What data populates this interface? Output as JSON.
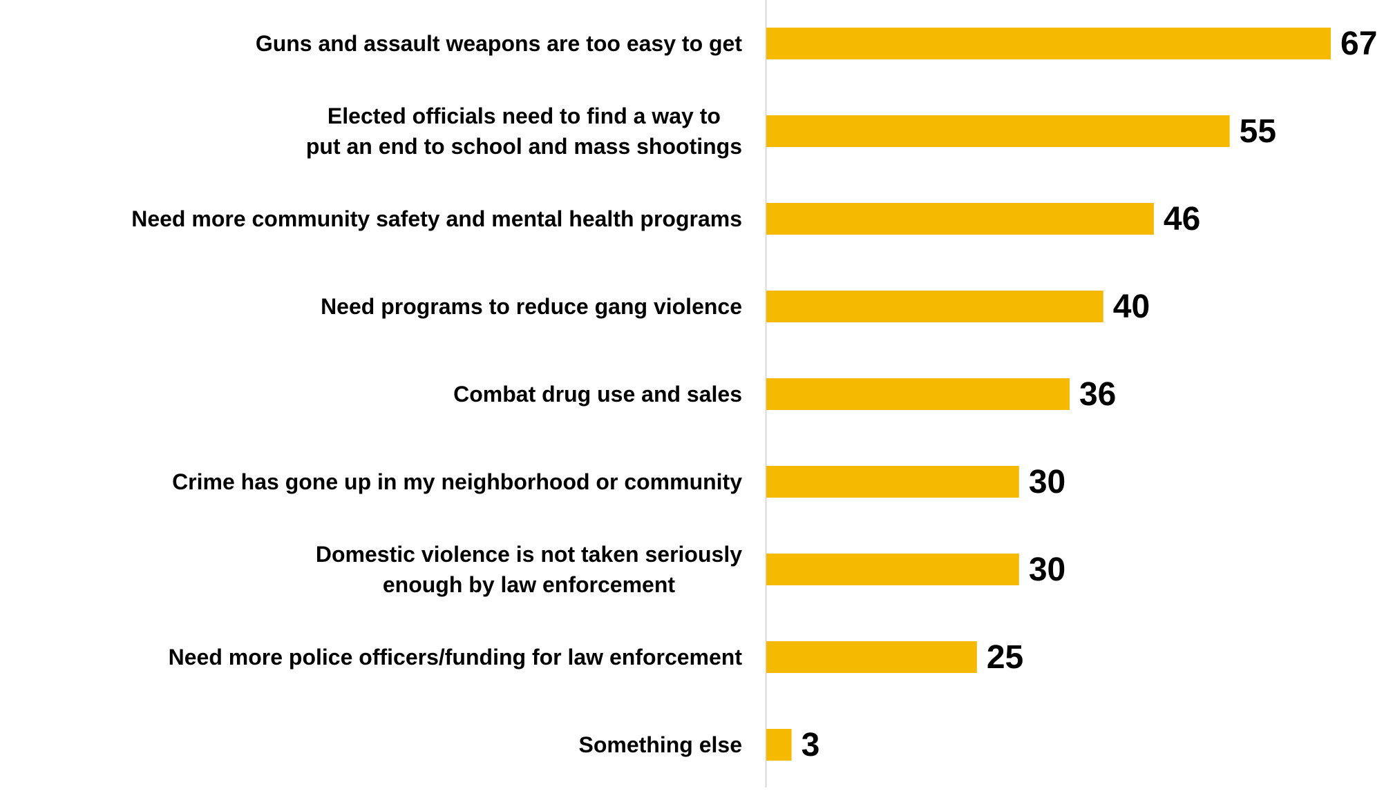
{
  "colors": {
    "bar": "#F5BA00",
    "axis": "#D9D9D9",
    "text": "#000000"
  },
  "chart_data": {
    "type": "bar",
    "orientation": "horizontal",
    "title": "",
    "xlabel": "",
    "ylabel": "",
    "xlim": [
      0,
      67
    ],
    "grid": false,
    "legend": "none",
    "categories": [
      [
        "Guns and assault weapons are too easy to get"
      ],
      [
        "Elected officials need to find a way to",
        "put an end to school and mass shootings"
      ],
      [
        "Need more community safety and mental health programs"
      ],
      [
        "Need programs to reduce gang violence"
      ],
      [
        "Combat drug use and sales"
      ],
      [
        "Crime has gone up in my neighborhood or community"
      ],
      [
        "Domestic violence is not taken seriously",
        "enough by law enforcement"
      ],
      [
        "Need more police officers/funding for law enforcement"
      ],
      [
        "Something else"
      ]
    ],
    "values": [
      67,
      55,
      46,
      40,
      36,
      30,
      30,
      25,
      3
    ],
    "data_labels": [
      "67",
      "55",
      "46",
      "40",
      "36",
      "30",
      "30",
      "25",
      "3"
    ]
  }
}
